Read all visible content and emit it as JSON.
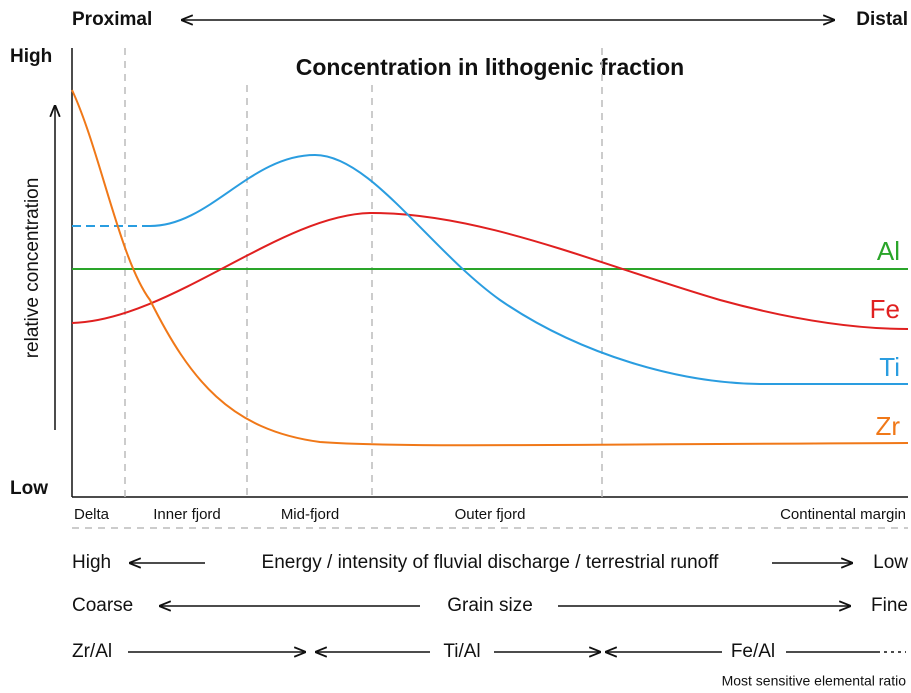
{
  "header": {
    "left": "Proximal",
    "right": "Distal"
  },
  "axis": {
    "high": "High",
    "low": "Low",
    "label": "relative concentration"
  },
  "title": "Concentration in lithogenic fraction",
  "elements": [
    "Al",
    "Fe",
    "Ti",
    "Zr"
  ],
  "zones": [
    "Delta",
    "Inner fjord",
    "Mid-fjord",
    "Outer fjord",
    "Continental margin"
  ],
  "rows": {
    "energy": {
      "left": "High",
      "label": "Energy / intensity of fluvial discharge / terrestrial runoff",
      "right": "Low"
    },
    "grain": {
      "left": "Coarse",
      "label": "Grain size",
      "right": "Fine"
    },
    "ratios": {
      "items": [
        "Zr/Al",
        "Ti/Al",
        "Fe/Al"
      ],
      "note": "Most sensitive elemental ratio"
    }
  }
}
